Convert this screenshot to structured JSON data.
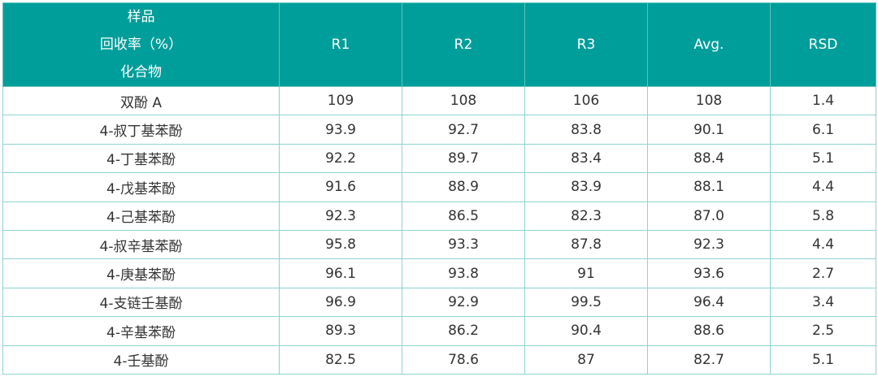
{
  "table": {
    "header": {
      "corner": [
        "样品",
        "回收率（%）",
        "化合物"
      ],
      "columns": [
        "R1",
        "R2",
        "R3",
        "Avg.",
        "RSD"
      ]
    },
    "rows": [
      [
        "双酚 A",
        "109",
        "108",
        "106",
        "108",
        "1.4"
      ],
      [
        "4-叔丁基苯酚",
        "93.9",
        "92.7",
        "83.8",
        "90.1",
        "6.1"
      ],
      [
        "4-丁基苯酚",
        "92.2",
        "89.7",
        "83.4",
        "88.4",
        "5.1"
      ],
      [
        "4-戊基苯酚",
        "91.6",
        "88.9",
        "83.9",
        "88.1",
        "4.4"
      ],
      [
        "4-己基苯酚",
        "92.3",
        "86.5",
        "82.3",
        "87.0",
        "5.8"
      ],
      [
        "4-叔辛基苯酚",
        "95.8",
        "93.3",
        "87.8",
        "92.3",
        "4.4"
      ],
      [
        "4-庚基苯酚",
        "96.1",
        "93.8",
        "91",
        "93.6",
        "2.7"
      ],
      [
        "4-支链壬基酚",
        "96.9",
        "92.9",
        "99.5",
        "96.4",
        "3.4"
      ],
      [
        "4-辛基苯酚",
        "89.3",
        "86.2",
        "90.4",
        "88.6",
        "2.5"
      ],
      [
        "4-壬基酚",
        "82.5",
        "78.6",
        "87",
        "82.7",
        "5.1"
      ]
    ]
  }
}
